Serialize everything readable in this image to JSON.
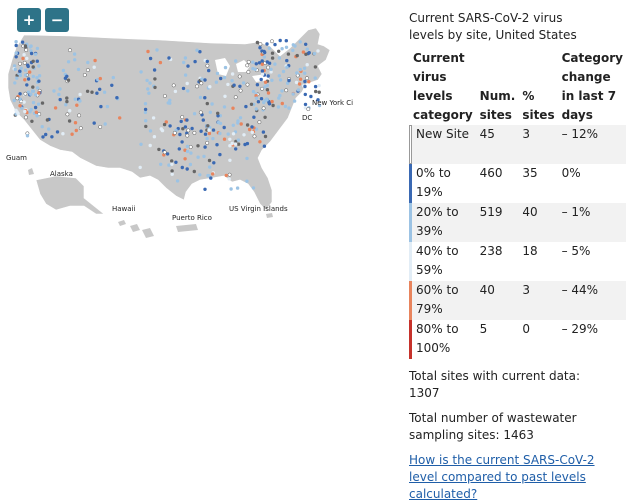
{
  "zoom": {
    "in_label": "+",
    "out_label": "−"
  },
  "map": {
    "labels": {
      "new_york": "New York Ci",
      "dc": "DC",
      "guam": "Guam",
      "alaska": "Alaska",
      "hawaii": "Hawaii",
      "puerto_rico": "Puerto Rico",
      "usvi": "US Virgin Islands"
    },
    "colors": {
      "land": "#c8c8c8",
      "border": "#ffffff",
      "new_site": "#ffffff",
      "level_0_19": "#3a69b3",
      "level_20_39": "#9cc3e4",
      "level_40_59": "#e2edf6",
      "level_60_79": "#e8845d",
      "level_80_100": "#c6322b",
      "no_data": "#666666"
    }
  },
  "panel": {
    "title": "Current SARS-CoV-2 virus levels by site, United States",
    "headers": {
      "category": "Current virus levels category",
      "num_sites": "Num. sites",
      "pct_sites": "% sites",
      "change": "Category change in last 7 days"
    },
    "rows": [
      {
        "category": "New Site",
        "num": "45",
        "pct": "3",
        "change": "– 12%",
        "color": "#ffffff"
      },
      {
        "category": "0% to 19%",
        "num": "460",
        "pct": "35",
        "change": "0%",
        "color": "#3a69b3"
      },
      {
        "category": "20% to 39%",
        "num": "519",
        "pct": "40",
        "change": "– 1%",
        "color": "#9cc3e4"
      },
      {
        "category": "40% to 59%",
        "num": "238",
        "pct": "18",
        "change": "– 5%",
        "color": "#e2edf6"
      },
      {
        "category": "60% to 79%",
        "num": "40",
        "pct": "3",
        "change": "– 44%",
        "color": "#e8845d"
      },
      {
        "category": "80% to 100%",
        "num": "5",
        "pct": "0",
        "change": "– 29%",
        "color": "#c6322b"
      }
    ],
    "total_current": "Total sites with current data: 1307",
    "total_sampling": "Total number of wastewater sampling sites: 1463",
    "link_text": "How is the current SARS-CoV-2 level compared to past levels calculated?"
  }
}
